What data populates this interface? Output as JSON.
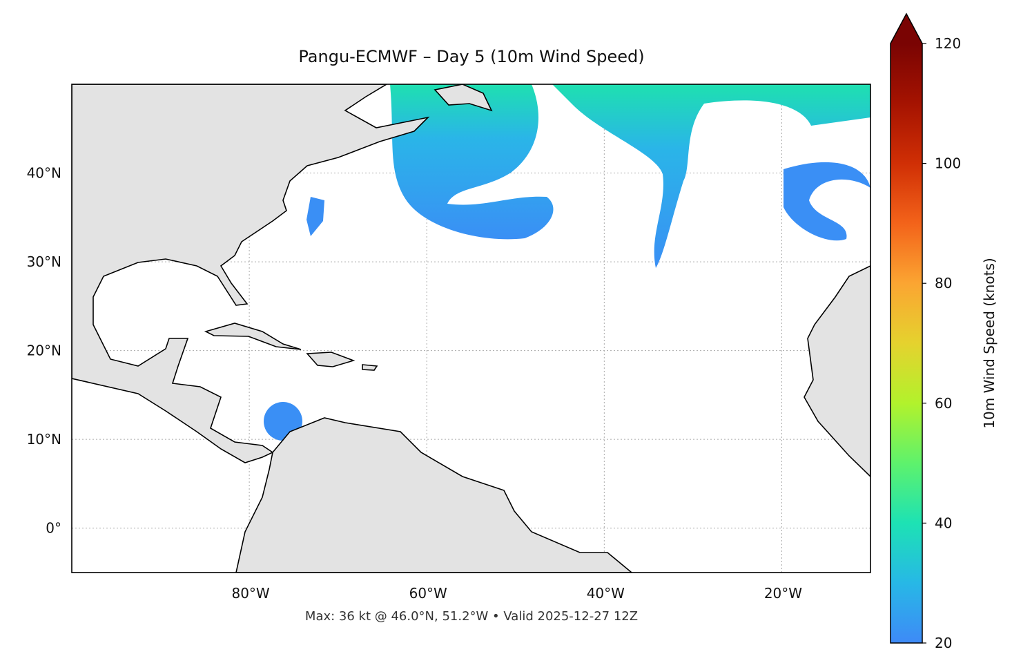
{
  "chart_data": {
    "type": "map",
    "title": "Pangu-ECMWF – Day 5 (10m Wind Speed)",
    "annotation": "Max: 36 kt @ 46.0°N, 51.2°W • Valid 2025-12-27 12Z",
    "xlim": [
      -100,
      -10
    ],
    "ylim": [
      -5,
      50
    ],
    "xticks": [
      {
        "value": -80,
        "label": "80°W"
      },
      {
        "value": -60,
        "label": "60°W"
      },
      {
        "value": -40,
        "label": "40°W"
      },
      {
        "value": -20,
        "label": "20°W"
      }
    ],
    "yticks": [
      {
        "value": 0,
        "label": "0°"
      },
      {
        "value": 10,
        "label": "10°N"
      },
      {
        "value": 20,
        "label": "20°N"
      },
      {
        "value": 30,
        "label": "30°N"
      },
      {
        "value": 40,
        "label": "40°N"
      }
    ],
    "grid": true,
    "colorbar": {
      "label": "10m Wind Speed (knots)",
      "lim": [
        20,
        120
      ],
      "ticks": [
        20,
        40,
        60,
        80,
        100,
        120
      ],
      "colors": [
        "#3e8af7",
        "#27b8e6",
        "#1de2b4",
        "#5ef26c",
        "#b2f22c",
        "#e5d22e",
        "#fba532",
        "#f3631a",
        "#d02f05",
        "#a51301",
        "#7a0403"
      ]
    }
  }
}
